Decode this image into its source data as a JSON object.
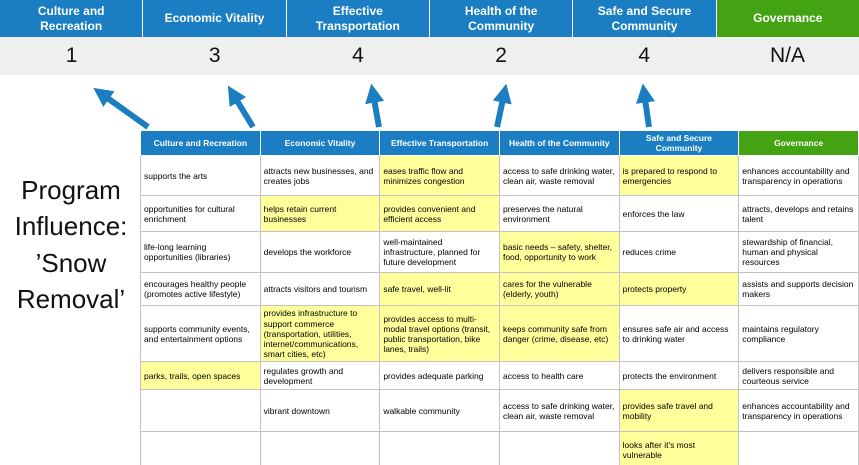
{
  "title": {
    "lines": [
      "Program",
      "Influence:",
      "’Snow",
      "Removal’"
    ]
  },
  "scoreboard": {
    "columns": [
      {
        "label": "Culture and Recreation",
        "score": "1",
        "theme": "blue"
      },
      {
        "label": "Economic Vitality",
        "score": "3",
        "theme": "blue"
      },
      {
        "label": "Effective Transportation",
        "score": "4",
        "theme": "blue"
      },
      {
        "label": "Health of the Community",
        "score": "2",
        "theme": "blue"
      },
      {
        "label": "Safe and Secure Community",
        "score": "4",
        "theme": "blue"
      },
      {
        "label": "Governance",
        "score": "N/A",
        "theme": "green"
      }
    ]
  },
  "table": {
    "headers": [
      {
        "label": "Culture and Recreation",
        "theme": "blue"
      },
      {
        "label": "Economic Vitality",
        "theme": "blue"
      },
      {
        "label": "Effective Transportation",
        "theme": "blue"
      },
      {
        "label": "Health of the Community",
        "theme": "blue"
      },
      {
        "label": "Safe and Secure Community",
        "theme": "blue"
      },
      {
        "label": "Governance",
        "theme": "green"
      }
    ],
    "rows": [
      [
        {
          "text": "supports the arts",
          "hl": false
        },
        {
          "text": "attracts new businesses, and creates jobs",
          "hl": false
        },
        {
          "text": "eases traffic flow and minimizes congestion",
          "hl": true
        },
        {
          "text": "access to safe drinking water, clean air, waste removal",
          "hl": false
        },
        {
          "text": "is prepared to respond to emergencies",
          "hl": true
        },
        {
          "text": "enhances accountability and transparency in operations",
          "hl": false
        }
      ],
      [
        {
          "text": "opportunities for cultural enrichment",
          "hl": false
        },
        {
          "text": "helps retain current businesses",
          "hl": true
        },
        {
          "text": "provides convenient and efficient access",
          "hl": true
        },
        {
          "text": "preserves the natural environment",
          "hl": false
        },
        {
          "text": "enforces the law",
          "hl": false
        },
        {
          "text": "attracts, develops and retains talent",
          "hl": false
        }
      ],
      [
        {
          "text": "life-long learning opportunities (libraries)",
          "hl": false
        },
        {
          "text": "develops the workforce",
          "hl": false
        },
        {
          "text": "well-maintained infrastructure, planned for future development",
          "hl": false
        },
        {
          "text": "basic needs – safety, shelter, food, opportunity to work",
          "hl": true
        },
        {
          "text": "reduces crime",
          "hl": false
        },
        {
          "text": "stewardship of financial, human and physical resources",
          "hl": false
        }
      ],
      [
        {
          "text": "encourages healthy people (promotes active lifestyle)",
          "hl": false
        },
        {
          "text": "attracts visitors and tourism",
          "hl": false
        },
        {
          "text": "safe travel, well-lit",
          "hl": true
        },
        {
          "text": "cares for the vulnerable (elderly, youth)",
          "hl": true
        },
        {
          "text": "protects property",
          "hl": true
        },
        {
          "text": "assists and supports decision makers",
          "hl": false
        }
      ],
      [
        {
          "text": "supports community events, and entertainment options",
          "hl": false
        },
        {
          "text": "provides infrastructure to support commerce (transportation, utilities, internet/communications, smart cities, etc)",
          "hl": true
        },
        {
          "text": "provides access to multi-modal travel options (transit, public transportation, bike lanes, trails)",
          "hl": true
        },
        {
          "text": "keeps community safe from danger (crime, disease, etc)",
          "hl": true
        },
        {
          "text": "ensures safe air and access to drinking water",
          "hl": false
        },
        {
          "text": "maintains regulatory compliance",
          "hl": false
        }
      ],
      [
        {
          "text": "parks, trails, open spaces",
          "hl": true
        },
        {
          "text": "regulates growth and development",
          "hl": false
        },
        {
          "text": "provides adequate parking",
          "hl": false
        },
        {
          "text": "access to health care",
          "hl": false
        },
        {
          "text": "protects the environment",
          "hl": false
        },
        {
          "text": "delivers responsible and courteous service",
          "hl": false
        }
      ],
      [
        {
          "text": "",
          "hl": false
        },
        {
          "text": "vibrant downtown",
          "hl": false
        },
        {
          "text": "walkable community",
          "hl": false
        },
        {
          "text": "access to safe drinking water, clean air, waste removal",
          "hl": false
        },
        {
          "text": "provides safe travel and mobility",
          "hl": true
        },
        {
          "text": "enhances accountability and transparency in operations",
          "hl": false
        }
      ],
      [
        {
          "text": "",
          "hl": false
        },
        {
          "text": "",
          "hl": false
        },
        {
          "text": "",
          "hl": false
        },
        {
          "text": "",
          "hl": false
        },
        {
          "text": "looks after it's most vulnerable",
          "hl": true
        },
        {
          "text": "",
          "hl": false
        }
      ]
    ]
  },
  "colors": {
    "header_blue": "#1b7ec3",
    "header_green": "#43a313",
    "highlight_yellow": "#ffff9c",
    "score_bg": "#efefef",
    "arrow_blue": "#1b7ec3"
  }
}
